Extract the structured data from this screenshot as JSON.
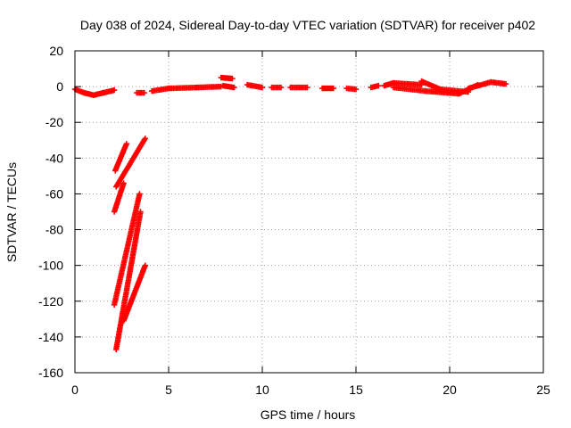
{
  "chart_data": {
    "type": "scatter",
    "title": "Day 038 of 2024, Sidereal Day-to-day VTEC variation (SDTVAR) for receiver p402",
    "xlabel": "GPS time / hours",
    "ylabel": "SDTVAR / TECUs",
    "xlim": [
      0,
      25
    ],
    "ylim": [
      -160,
      20
    ],
    "xticks": [
      0,
      5,
      10,
      15,
      20,
      25
    ],
    "yticks": [
      -160,
      -140,
      -120,
      -100,
      -80,
      -60,
      -40,
      -20,
      0,
      20
    ],
    "grid": true,
    "marker": "plus",
    "color": "#ff0000",
    "series": [
      {
        "name": "SDTVAR",
        "segments": [
          {
            "x0": 0.0,
            "y0": -1.5,
            "x1": 0.5,
            "y1": -3.5
          },
          {
            "x0": 0.5,
            "y0": -3.5,
            "x1": 1.0,
            "y1": -4.8
          },
          {
            "x0": 1.0,
            "y0": -4.8,
            "x1": 1.5,
            "y1": -3.5
          },
          {
            "x0": 1.5,
            "y0": -3.5,
            "x1": 2.1,
            "y1": -2.0
          },
          {
            "x0": 3.3,
            "y0": -3.5,
            "x1": 3.7,
            "y1": -3.5
          },
          {
            "x0": 4.1,
            "y0": -2.5,
            "x1": 5.0,
            "y1": -1.0
          },
          {
            "x0": 5.0,
            "y0": -1.0,
            "x1": 6.5,
            "y1": -0.5
          },
          {
            "x0": 6.5,
            "y0": -0.5,
            "x1": 7.8,
            "y1": 0.0
          },
          {
            "x0": 7.8,
            "y0": 5.0,
            "x1": 8.4,
            "y1": 4.5
          },
          {
            "x0": 7.9,
            "y0": 0.5,
            "x1": 8.5,
            "y1": -0.5
          },
          {
            "x0": 9.2,
            "y0": 1.0,
            "x1": 10.0,
            "y1": -0.5
          },
          {
            "x0": 10.5,
            "y0": -0.5,
            "x1": 11.0,
            "y1": -0.5
          },
          {
            "x0": 11.5,
            "y0": -0.5,
            "x1": 12.4,
            "y1": -0.5
          },
          {
            "x0": 13.2,
            "y0": -1.0,
            "x1": 13.8,
            "y1": -1.0
          },
          {
            "x0": 14.5,
            "y0": -1.0,
            "x1": 15.0,
            "y1": -1.5
          },
          {
            "x0": 15.8,
            "y0": -0.5,
            "x1": 16.2,
            "y1": 0.5
          },
          {
            "x0": 16.5,
            "y0": 0.5,
            "x1": 17.0,
            "y1": 2.0
          },
          {
            "x0": 17.0,
            "y0": 2.0,
            "x1": 18.5,
            "y1": 1.0
          },
          {
            "x0": 17.0,
            "y0": -0.5,
            "x1": 18.7,
            "y1": -2.5
          },
          {
            "x0": 18.5,
            "y0": 3.0,
            "x1": 19.5,
            "y1": -1.5
          },
          {
            "x0": 18.7,
            "y0": -2.5,
            "x1": 20.5,
            "y1": -4.0
          },
          {
            "x0": 19.5,
            "y0": -1.5,
            "x1": 21.0,
            "y1": -3.0
          },
          {
            "x0": 20.5,
            "y0": -4.0,
            "x1": 21.5,
            "y1": 1.0
          },
          {
            "x0": 21.0,
            "y0": -1.0,
            "x1": 22.2,
            "y1": 2.5
          },
          {
            "x0": 22.2,
            "y0": 2.5,
            "x1": 23.0,
            "y1": 1.5
          },
          {
            "x0": 2.15,
            "y0": -47,
            "x1": 2.75,
            "y1": -32
          },
          {
            "x0": 2.2,
            "y0": -56,
            "x1": 3.75,
            "y1": -29
          },
          {
            "x0": 2.1,
            "y0": -70,
            "x1": 2.6,
            "y1": -54
          },
          {
            "x0": 2.1,
            "y0": -122,
            "x1": 3.45,
            "y1": -60
          },
          {
            "x0": 2.2,
            "y0": -147,
            "x1": 3.5,
            "y1": -70
          },
          {
            "x0": 2.6,
            "y0": -131,
            "x1": 3.75,
            "y1": -100
          }
        ]
      }
    ]
  }
}
